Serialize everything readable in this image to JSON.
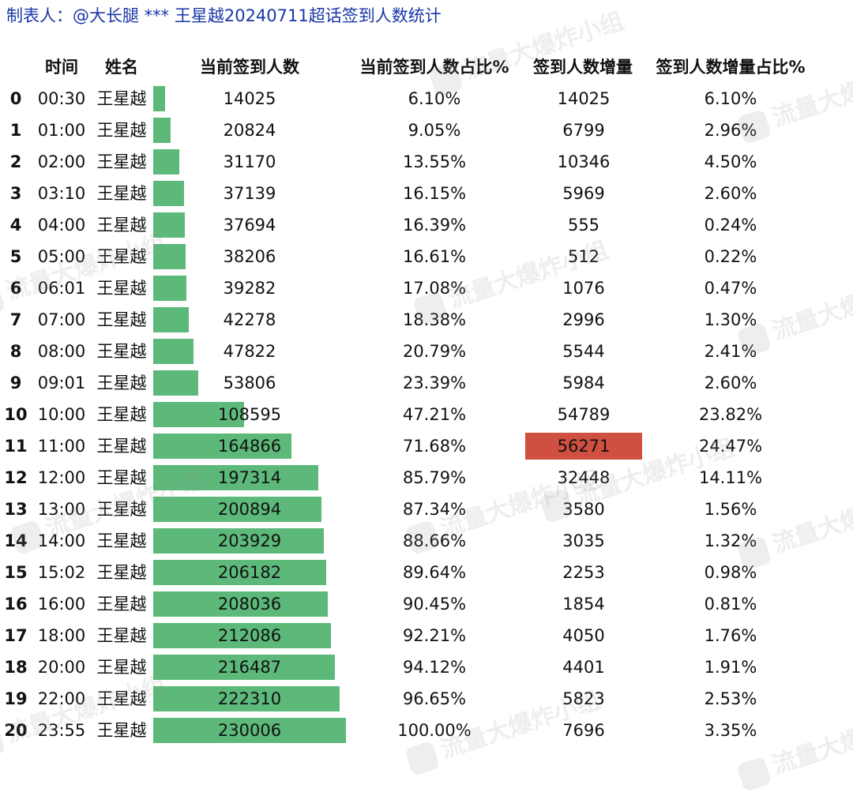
{
  "title": "制表人：@大长腿 *** 王星越20240711超话签到人数统计",
  "watermark": "流量大爆炸小组",
  "colors": {
    "bar": "#5cb97a",
    "highlight": "#cf4f40",
    "title": "#1a36a8"
  },
  "chart_data": {
    "type": "table",
    "columns": [
      "时间",
      "姓名",
      "当前签到人数",
      "当前签到人数占比%",
      "签到人数增量",
      "签到人数增量占比%"
    ],
    "highlight_row": 11,
    "highlight_column": "签到人数增量",
    "rows": [
      {
        "index": "0",
        "time": "00:30",
        "name": "王星越",
        "count": 14025,
        "pct": "6.10%",
        "inc": "14025",
        "inc_pct": "6.10%"
      },
      {
        "index": "1",
        "time": "01:00",
        "name": "王星越",
        "count": 20824,
        "pct": "9.05%",
        "inc": "6799",
        "inc_pct": "2.96%"
      },
      {
        "index": "2",
        "time": "02:00",
        "name": "王星越",
        "count": 31170,
        "pct": "13.55%",
        "inc": "10346",
        "inc_pct": "4.50%"
      },
      {
        "index": "3",
        "time": "03:10",
        "name": "王星越",
        "count": 37139,
        "pct": "16.15%",
        "inc": "5969",
        "inc_pct": "2.60%"
      },
      {
        "index": "4",
        "time": "04:00",
        "name": "王星越",
        "count": 37694,
        "pct": "16.39%",
        "inc": "555",
        "inc_pct": "0.24%"
      },
      {
        "index": "5",
        "time": "05:00",
        "name": "王星越",
        "count": 38206,
        "pct": "16.61%",
        "inc": "512",
        "inc_pct": "0.22%"
      },
      {
        "index": "6",
        "time": "06:01",
        "name": "王星越",
        "count": 39282,
        "pct": "17.08%",
        "inc": "1076",
        "inc_pct": "0.47%"
      },
      {
        "index": "7",
        "time": "07:00",
        "name": "王星越",
        "count": 42278,
        "pct": "18.38%",
        "inc": "2996",
        "inc_pct": "1.30%"
      },
      {
        "index": "8",
        "time": "08:00",
        "name": "王星越",
        "count": 47822,
        "pct": "20.79%",
        "inc": "5544",
        "inc_pct": "2.41%"
      },
      {
        "index": "9",
        "time": "09:01",
        "name": "王星越",
        "count": 53806,
        "pct": "23.39%",
        "inc": "5984",
        "inc_pct": "2.60%"
      },
      {
        "index": "10",
        "time": "10:00",
        "name": "王星越",
        "count": 108595,
        "pct": "47.21%",
        "inc": "54789",
        "inc_pct": "23.82%"
      },
      {
        "index": "11",
        "time": "11:00",
        "name": "王星越",
        "count": 164866,
        "pct": "71.68%",
        "inc": "56271",
        "inc_pct": "24.47%"
      },
      {
        "index": "12",
        "time": "12:00",
        "name": "王星越",
        "count": 197314,
        "pct": "85.79%",
        "inc": "32448",
        "inc_pct": "14.11%"
      },
      {
        "index": "13",
        "time": "13:00",
        "name": "王星越",
        "count": 200894,
        "pct": "87.34%",
        "inc": "3580",
        "inc_pct": "1.56%"
      },
      {
        "index": "14",
        "time": "14:00",
        "name": "王星越",
        "count": 203929,
        "pct": "88.66%",
        "inc": "3035",
        "inc_pct": "1.32%"
      },
      {
        "index": "15",
        "time": "15:02",
        "name": "王星越",
        "count": 206182,
        "pct": "89.64%",
        "inc": "2253",
        "inc_pct": "0.98%"
      },
      {
        "index": "16",
        "time": "16:00",
        "name": "王星越",
        "count": 208036,
        "pct": "90.45%",
        "inc": "1854",
        "inc_pct": "0.81%"
      },
      {
        "index": "17",
        "time": "18:00",
        "name": "王星越",
        "count": 212086,
        "pct": "92.21%",
        "inc": "4050",
        "inc_pct": "1.76%"
      },
      {
        "index": "18",
        "time": "20:00",
        "name": "王星越",
        "count": 216487,
        "pct": "94.12%",
        "inc": "4401",
        "inc_pct": "1.91%"
      },
      {
        "index": "19",
        "time": "22:00",
        "name": "王星越",
        "count": 222310,
        "pct": "96.65%",
        "inc": "5823",
        "inc_pct": "2.53%"
      },
      {
        "index": "20",
        "time": "23:55",
        "name": "王星越",
        "count": 230006,
        "pct": "100.00%",
        "inc": "7696",
        "inc_pct": "3.35%"
      }
    ]
  }
}
